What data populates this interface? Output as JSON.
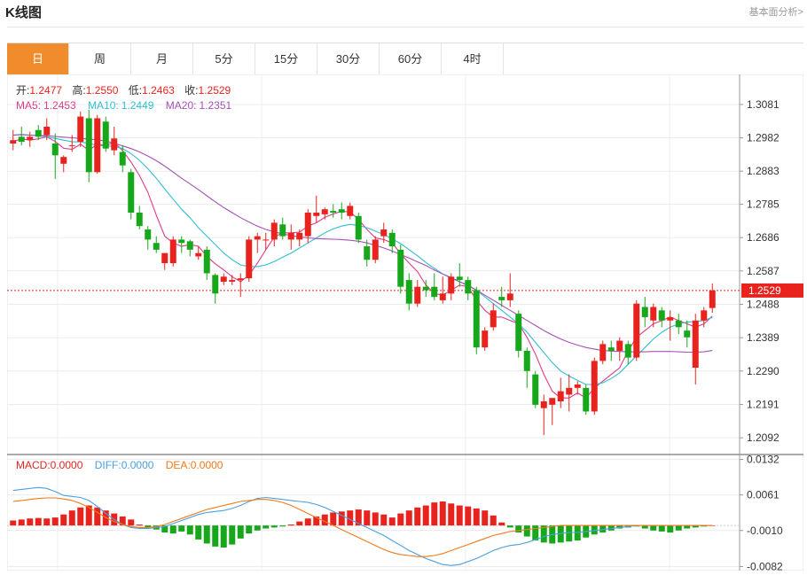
{
  "header": {
    "title": "K线图",
    "more_link": "基本面分析>"
  },
  "tabs": [
    {
      "label": "日",
      "active": true
    },
    {
      "label": "周",
      "active": false
    },
    {
      "label": "月",
      "active": false
    },
    {
      "label": "5分",
      "active": false
    },
    {
      "label": "15分",
      "active": false
    },
    {
      "label": "30分",
      "active": false
    },
    {
      "label": "60分",
      "active": false
    },
    {
      "label": "4时",
      "active": false
    }
  ],
  "ohlc_info": {
    "open_label": "开:",
    "open": "1.2477",
    "high_label": "高:",
    "high": "1.2550",
    "low_label": "低:",
    "low": "1.2463",
    "close_label": "收:",
    "close": "1.2529"
  },
  "ma_info": {
    "ma5_label": "MA5:",
    "ma5": "1.2453",
    "ma10_label": "MA10:",
    "ma10": "1.2449",
    "ma20_label": "MA20:",
    "ma20": "1.2351"
  },
  "macd_info": {
    "macd_label": "MACD:",
    "macd": "0.0000",
    "diff_label": "DIFF:",
    "diff": "0.0000",
    "dea_label": "DEA:",
    "dea": "0.0000"
  },
  "current_price_tag": "1.2529",
  "colors": {
    "up": "#e8231e",
    "down": "#16a81a",
    "ma5": "#e23a8c",
    "ma10": "#2fbfd2",
    "ma20": "#a550b8",
    "dea": "#f07a18",
    "diff": "#4aa0e0",
    "accent_tab": "#f08c2c"
  },
  "chart_data": {
    "type": "candlestick",
    "price_axis_ticks": [
      "1.3081",
      "1.2982",
      "1.2883",
      "1.2785",
      "1.2686",
      "1.2587",
      "1.2488",
      "1.2389",
      "1.2290",
      "1.2191",
      "1.2092"
    ],
    "macd_axis_ticks": [
      "0.0132",
      "0.0061",
      "-0.0010",
      "-0.0082"
    ],
    "ylim_price": [
      1.2045,
      1.317
    ],
    "ylim_macd": [
      -0.009,
      0.014
    ],
    "candles": [
      [
        1.2965,
        1.3005,
        1.2945,
        1.2975
      ],
      [
        1.2985,
        1.3015,
        1.296,
        1.297
      ],
      [
        1.2975,
        1.3,
        1.2955,
        1.2985
      ],
      [
        1.3005,
        1.302,
        1.2975,
        1.2985
      ],
      [
        1.299,
        1.304,
        1.2975,
        1.3015
      ],
      [
        1.2965,
        1.2995,
        1.286,
        1.293
      ],
      [
        1.2905,
        1.293,
        1.288,
        1.2925
      ],
      [
        1.296,
        1.299,
        1.294,
        1.296
      ],
      [
        1.297,
        1.306,
        1.2955,
        1.3045
      ],
      [
        1.304,
        1.3065,
        1.285,
        1.288
      ],
      [
        1.288,
        1.305,
        1.2875,
        1.304
      ],
      [
        1.303,
        1.3045,
        1.294,
        1.295
      ],
      [
        1.2945,
        1.3015,
        1.293,
        1.298
      ],
      [
        1.294,
        1.296,
        1.288,
        1.29
      ],
      [
        1.288,
        1.289,
        1.274,
        1.276
      ],
      [
        1.276,
        1.278,
        1.271,
        1.272
      ],
      [
        1.271,
        1.272,
        1.265,
        1.268
      ],
      [
        1.267,
        1.269,
        1.264,
        1.265
      ],
      [
        1.261,
        1.264,
        1.259,
        1.264
      ],
      [
        1.261,
        1.269,
        1.26,
        1.268
      ],
      [
        1.268,
        1.269,
        1.264,
        1.267
      ],
      [
        1.2675,
        1.268,
        1.263,
        1.265
      ],
      [
        1.263,
        1.266,
        1.262,
        1.264
      ],
      [
        1.265,
        1.266,
        1.256,
        1.258
      ],
      [
        1.2575,
        1.258,
        1.249,
        1.252
      ],
      [
        1.2555,
        1.258,
        1.2545,
        1.257
      ],
      [
        1.2555,
        1.2575,
        1.2545,
        1.256
      ],
      [
        1.256,
        1.258,
        1.251,
        1.2565
      ],
      [
        1.2565,
        1.269,
        1.2555,
        1.268
      ],
      [
        1.268,
        1.27,
        1.264,
        1.269
      ],
      [
        1.268,
        1.27,
        1.265,
        1.268
      ],
      [
        1.268,
        1.274,
        1.266,
        1.273
      ],
      [
        1.2725,
        1.2745,
        1.268,
        1.269
      ],
      [
        1.268,
        1.2725,
        1.265,
        1.27
      ],
      [
        1.268,
        1.271,
        1.266,
        1.27
      ],
      [
        1.269,
        1.277,
        1.267,
        1.276
      ],
      [
        1.275,
        1.281,
        1.273,
        1.276
      ],
      [
        1.2755,
        1.2775,
        1.274,
        1.277
      ],
      [
        1.2765,
        1.2785,
        1.2745,
        1.276
      ],
      [
        1.277,
        1.279,
        1.274,
        1.276
      ],
      [
        1.275,
        1.279,
        1.274,
        1.278
      ],
      [
        1.275,
        1.276,
        1.267,
        1.268
      ],
      [
        1.266,
        1.268,
        1.26,
        1.262
      ],
      [
        1.262,
        1.269,
        1.261,
        1.268
      ],
      [
        1.269,
        1.273,
        1.267,
        1.271
      ],
      [
        1.27,
        1.271,
        1.264,
        1.266
      ],
      [
        1.265,
        1.2665,
        1.252,
        1.254
      ],
      [
        1.256,
        1.258,
        1.247,
        1.249
      ],
      [
        1.249,
        1.256,
        1.248,
        1.254
      ],
      [
        1.254,
        1.256,
        1.251,
        1.253
      ],
      [
        1.254,
        1.258,
        1.25,
        1.251
      ],
      [
        1.25,
        1.257,
        1.249,
        1.252
      ],
      [
        1.252,
        1.258,
        1.25,
        1.257
      ],
      [
        1.257,
        1.261,
        1.254,
        1.256
      ],
      [
        1.256,
        1.257,
        1.25,
        1.252
      ],
      [
        1.253,
        1.254,
        1.234,
        1.236
      ],
      [
        1.236,
        1.242,
        1.235,
        1.241
      ],
      [
        1.242,
        1.249,
        1.241,
        1.247
      ],
      [
        1.251,
        1.254,
        1.248,
        1.25
      ],
      [
        1.25,
        1.258,
        1.248,
        1.252
      ],
      [
        1.246,
        1.247,
        1.233,
        1.235
      ],
      [
        1.235,
        1.236,
        1.224,
        1.229
      ],
      [
        1.228,
        1.229,
        1.218,
        1.219
      ],
      [
        1.218,
        1.222,
        1.21,
        1.22
      ],
      [
        1.219,
        1.221,
        1.213,
        1.221
      ],
      [
        1.22,
        1.227,
        1.218,
        1.223
      ],
      [
        1.222,
        1.228,
        1.217,
        1.224
      ],
      [
        1.224,
        1.226,
        1.222,
        1.225
      ],
      [
        1.224,
        1.225,
        1.216,
        1.217
      ],
      [
        1.217,
        1.233,
        1.216,
        1.232
      ],
      [
        1.232,
        1.238,
        1.231,
        1.237
      ],
      [
        1.236,
        1.238,
        1.232,
        1.235
      ],
      [
        1.235,
        1.239,
        1.232,
        1.238
      ],
      [
        1.237,
        1.238,
        1.231,
        1.233
      ],
      [
        1.233,
        1.25,
        1.232,
        1.249
      ],
      [
        1.248,
        1.251,
        1.242,
        1.245
      ],
      [
        1.244,
        1.249,
        1.242,
        1.248
      ],
      [
        1.247,
        1.248,
        1.242,
        1.244
      ],
      [
        1.244,
        1.247,
        1.238,
        1.245
      ],
      [
        1.244,
        1.246,
        1.24,
        1.242
      ],
      [
        1.241,
        1.244,
        1.236,
        1.239
      ],
      [
        1.23,
        1.246,
        1.225,
        1.244
      ],
      [
        1.244,
        1.248,
        1.242,
        1.247
      ],
      [
        1.2477,
        1.255,
        1.2463,
        1.2529
      ]
    ],
    "ma5": [
      1.2971,
      1.2979,
      1.2975,
      1.2979,
      1.2985,
      1.2971,
      1.2951,
      1.2948,
      1.2963,
      1.2945,
      1.2963,
      1.296,
      1.2968,
      1.2944,
      1.291,
      1.287,
      1.282,
      1.2752,
      1.269,
      1.267,
      1.266,
      1.2665,
      1.266,
      1.263,
      1.2608,
      1.259,
      1.257,
      1.2555,
      1.2575,
      1.261,
      1.265,
      1.2688,
      1.27,
      1.27,
      1.2702,
      1.272,
      1.273,
      1.2746,
      1.2756,
      1.2764,
      1.2762,
      1.274,
      1.271,
      1.2685,
      1.268,
      1.267,
      1.2638,
      1.261,
      1.2585,
      1.2545,
      1.252,
      1.2515,
      1.253,
      1.2545,
      1.254,
      1.25,
      1.247,
      1.245,
      1.245,
      1.244,
      1.243,
      1.239,
      1.234,
      1.228,
      1.223,
      1.221,
      1.221,
      1.2225,
      1.221,
      1.224,
      1.226,
      1.228,
      1.23,
      1.235,
      1.239,
      1.241,
      1.243,
      1.244,
      1.245,
      1.244,
      1.243,
      1.242,
      1.243,
      1.2453
    ],
    "ma10": [
      1.299,
      1.2992,
      1.299,
      1.2988,
      1.2985,
      1.298,
      1.2975,
      1.297,
      1.297,
      1.2965,
      1.296,
      1.2958,
      1.2956,
      1.295,
      1.2935,
      1.2915,
      1.289,
      1.2862,
      1.283,
      1.28,
      1.277,
      1.2745,
      1.2715,
      1.269,
      1.2665,
      1.264,
      1.262,
      1.2605,
      1.26,
      1.26,
      1.2605,
      1.2615,
      1.2628,
      1.264,
      1.2655,
      1.267,
      1.2685,
      1.27,
      1.2712,
      1.272,
      1.2725,
      1.2722,
      1.2715,
      1.2705,
      1.2695,
      1.2682,
      1.2668,
      1.265,
      1.2632,
      1.2612,
      1.2595,
      1.2578,
      1.2565,
      1.2555,
      1.2545,
      1.253,
      1.251,
      1.249,
      1.247,
      1.245,
      1.243,
      1.2405,
      1.2375,
      1.2345,
      1.2315,
      1.229,
      1.2275,
      1.2262,
      1.225,
      1.225,
      1.2255,
      1.2268,
      1.2285,
      1.231,
      1.2335,
      1.236,
      1.2385,
      1.2405,
      1.242,
      1.243,
      1.2435,
      1.2437,
      1.244,
      1.2449
    ],
    "ma20": [
      1.299,
      1.2991,
      1.299,
      1.2989,
      1.2988,
      1.2986,
      1.2984,
      1.2982,
      1.298,
      1.2978,
      1.2976,
      1.2972,
      1.2966,
      1.2958,
      1.295,
      1.294,
      1.2928,
      1.2914,
      1.2898,
      1.288,
      1.2862,
      1.2845,
      1.2828,
      1.281,
      1.2792,
      1.2775,
      1.276,
      1.2745,
      1.2732,
      1.272,
      1.271,
      1.2703,
      1.2697,
      1.2692,
      1.2688,
      1.2685,
      1.2683,
      1.2682,
      1.2681,
      1.268,
      1.2678,
      1.2675,
      1.267,
      1.2663,
      1.2655,
      1.2646,
      1.2636,
      1.2625,
      1.2614,
      1.2603,
      1.259,
      1.2578,
      1.2567,
      1.2555,
      1.2543,
      1.253,
      1.2515,
      1.25,
      1.2485,
      1.247,
      1.2455,
      1.244,
      1.2425,
      1.241,
      1.2397,
      1.2385,
      1.2375,
      1.2367,
      1.236,
      1.2355,
      1.2351,
      1.2349,
      1.2348,
      1.2347,
      1.2347,
      1.2347,
      1.2348,
      1.2348,
      1.2348,
      1.2347,
      1.2346,
      1.2346,
      1.2347,
      1.2351
    ],
    "macd_hist": [
      0.001,
      0.0012,
      0.0014,
      0.0015,
      0.0014,
      0.0016,
      0.0022,
      0.003,
      0.0036,
      0.004,
      0.0036,
      0.003,
      0.0024,
      0.0018,
      0.0012,
      0.0002,
      -0.0004,
      -0.0008,
      -0.0014,
      -0.0016,
      -0.0012,
      -0.0018,
      -0.0028,
      -0.0036,
      -0.0042,
      -0.0044,
      -0.0038,
      -0.0026,
      -0.0016,
      -0.001,
      -0.0006,
      -0.0004,
      -0.0002,
      0.0002,
      0.0008,
      0.0014,
      0.0018,
      0.0022,
      0.0026,
      0.0028,
      0.003,
      0.0032,
      0.003,
      0.0026,
      0.0022,
      0.0016,
      0.0024,
      0.003,
      0.0036,
      0.004,
      0.0046,
      0.0048,
      0.0044,
      0.004,
      0.0038,
      0.0034,
      0.003,
      0.002,
      0.0006,
      -0.0004,
      -0.0014,
      -0.0022,
      -0.003,
      -0.0034,
      -0.0036,
      -0.0034,
      -0.0032,
      -0.003,
      -0.0024,
      -0.0018,
      -0.0014,
      -0.001,
      -0.0006,
      -0.0004,
      -0.0002,
      -0.0006,
      -0.001,
      -0.0012,
      -0.0014,
      -0.001,
      -0.0006,
      -0.0004,
      -0.0002,
      0.0
    ],
    "diff": [
      0.007,
      0.0072,
      0.0074,
      0.0076,
      0.0074,
      0.0068,
      0.006,
      0.0058,
      0.0056,
      0.005,
      0.0038,
      0.0024,
      0.0012,
      0.0002,
      -0.0004,
      -0.0006,
      -0.0006,
      -0.0004,
      -0.0002,
      0.0004,
      0.001,
      0.0016,
      0.0022,
      0.0026,
      0.0028,
      0.003,
      0.0034,
      0.004,
      0.0048,
      0.0054,
      0.0056,
      0.0054,
      0.0052,
      0.005,
      0.0048,
      0.0046,
      0.0042,
      0.0036,
      0.0028,
      0.002,
      0.0012,
      0.0004,
      -0.0004,
      -0.0012,
      -0.002,
      -0.003,
      -0.004,
      -0.005,
      -0.0058,
      -0.0066,
      -0.0072,
      -0.0078,
      -0.008,
      -0.0078,
      -0.0072,
      -0.0066,
      -0.0058,
      -0.005,
      -0.0044,
      -0.004,
      -0.0038,
      -0.0034,
      -0.0028,
      -0.0022,
      -0.0018,
      -0.0016,
      -0.0014,
      -0.0014,
      -0.0012,
      -0.001,
      -0.0008,
      -0.0006,
      -0.0004,
      -0.0002,
      0.0,
      0.0,
      0.0,
      0.0,
      0.0,
      0.0,
      0.0,
      0.0,
      0.0,
      0.0
    ],
    "dea": [
      0.0048,
      0.005,
      0.0052,
      0.0054,
      0.0055,
      0.0055,
      0.0053,
      0.005,
      0.0044,
      0.0036,
      0.0026,
      0.0016,
      0.0008,
      0.0002,
      -0.0002,
      -0.0004,
      -0.0004,
      -0.0002,
      0.0002,
      0.0008,
      0.0014,
      0.002,
      0.0026,
      0.0032,
      0.0036,
      0.004,
      0.0044,
      0.0048,
      0.005,
      0.0052,
      0.0052,
      0.005,
      0.0046,
      0.004,
      0.0032,
      0.0024,
      0.0016,
      0.0008,
      0.0,
      -0.0008,
      -0.0016,
      -0.0024,
      -0.0032,
      -0.004,
      -0.0048,
      -0.0054,
      -0.0058,
      -0.006,
      -0.0062,
      -0.0062,
      -0.006,
      -0.0056,
      -0.005,
      -0.0044,
      -0.0038,
      -0.0032,
      -0.0026,
      -0.002,
      -0.0016,
      -0.0012,
      -0.001,
      -0.0008,
      -0.0006,
      -0.0004,
      -0.0002,
      0.0,
      0.0,
      0.0,
      0.0,
      0.0,
      0.0,
      0.0,
      0.0,
      0.0,
      0.0,
      0.0,
      0.0,
      0.0,
      0.0,
      0.0,
      0.0,
      0.0,
      0.0,
      0.0
    ]
  }
}
